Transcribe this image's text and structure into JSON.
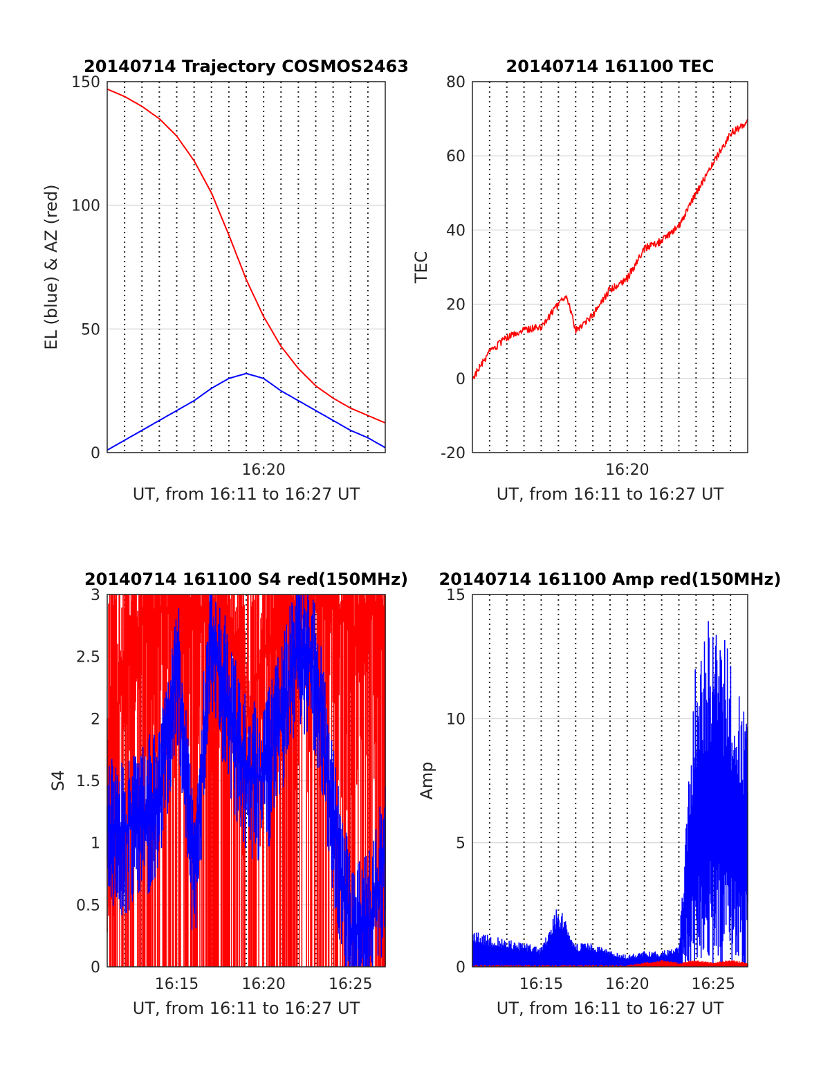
{
  "chart_data": [
    {
      "type": "line",
      "title": "20140714 Trajectory COSMOS2463",
      "xlabel": "UT, from 16:11 to 16:27 UT",
      "ylabel": "EL (blue) & AZ (red)",
      "xlim": [
        "16:11",
        "16:27"
      ],
      "ylim": [
        0,
        150
      ],
      "xticks": [
        "16:20"
      ],
      "yticks": [
        0,
        50,
        100,
        150
      ],
      "grid": true,
      "series": [
        {
          "color": "#ff0000",
          "x": [
            "16:11",
            "16:12",
            "16:13",
            "16:14",
            "16:15",
            "16:16",
            "16:17",
            "16:18",
            "16:19",
            "16:20",
            "16:21",
            "16:22",
            "16:23",
            "16:24",
            "16:25",
            "16:26",
            "16:27"
          ],
          "values": [
            147,
            144,
            140,
            135,
            128,
            118,
            105,
            88,
            70,
            55,
            43,
            34,
            27,
            22,
            18,
            15,
            12
          ]
        },
        {
          "color": "#0000ff",
          "x": [
            "16:11",
            "16:12",
            "16:13",
            "16:14",
            "16:15",
            "16:16",
            "16:17",
            "16:18",
            "16:19",
            "16:20",
            "16:21",
            "16:22",
            "16:23",
            "16:24",
            "16:25",
            "16:26",
            "16:27"
          ],
          "values": [
            1,
            5,
            9,
            13,
            17,
            21,
            26,
            30,
            32,
            30,
            25,
            21,
            17,
            13,
            9,
            6,
            2
          ]
        }
      ]
    },
    {
      "type": "line",
      "title": "20140714 161100 TEC",
      "xlabel": "UT, from 16:11 to 16:27 UT",
      "ylabel": "TEC",
      "xlim": [
        "16:11",
        "16:27"
      ],
      "ylim": [
        -20,
        80
      ],
      "xticks": [
        "16:20"
      ],
      "yticks": [
        -20,
        0,
        20,
        40,
        60,
        80
      ],
      "grid": true,
      "series": [
        {
          "color": "#ff0000",
          "x": [
            "16:11",
            "16:12",
            "16:13",
            "16:14",
            "16:15",
            "16:16",
            "16:16:30",
            "16:17",
            "16:18",
            "16:19",
            "16:20",
            "16:21",
            "16:22",
            "16:23",
            "16:24",
            "16:25",
            "16:26",
            "16:27"
          ],
          "values": [
            0,
            7,
            11,
            13,
            14,
            20,
            22,
            13,
            17,
            24,
            27,
            35,
            37,
            41,
            50,
            58,
            66,
            69
          ]
        }
      ]
    },
    {
      "type": "line",
      "title": "20140714 161100 S4 red(150MHz)",
      "xlabel": "UT, from 16:11 to 16:27 UT",
      "ylabel": "S4",
      "xlim": [
        "16:11",
        "16:27"
      ],
      "ylim": [
        0,
        3
      ],
      "xticks": [
        "16:15",
        "16:20",
        "16:25"
      ],
      "yticks": [
        0,
        0.5,
        1,
        1.5,
        2,
        2.5,
        3
      ],
      "grid": true,
      "series": [
        {
          "color": "#ff0000",
          "x": [
            "16:11",
            "16:12",
            "16:13",
            "16:14",
            "16:15",
            "16:16",
            "16:17",
            "16:18",
            "16:19",
            "16:20",
            "16:21",
            "16:22",
            "16:23",
            "16:24",
            "16:25",
            "16:26",
            "16:27"
          ],
          "values": [
            1.5,
            2.5,
            2.8,
            2.9,
            2.8,
            2.9,
            2.9,
            2.8,
            2.0,
            2.5,
            2.9,
            2.9,
            2.9,
            2.9,
            2.7,
            2.9,
            2.9
          ]
        },
        {
          "color": "#0000ff",
          "x": [
            "16:11",
            "16:12",
            "16:13",
            "16:14",
            "16:15",
            "16:16",
            "16:17",
            "16:18",
            "16:19",
            "16:20",
            "16:21",
            "16:22",
            "16:23",
            "16:24",
            "16:25",
            "16:26",
            "16:27"
          ],
          "values": [
            1.1,
            1.1,
            1.2,
            1.4,
            2.5,
            0.7,
            2.7,
            2.1,
            1.6,
            1.5,
            2.0,
            2.6,
            2.4,
            1.2,
            0.3,
            0.3,
            0.9
          ]
        }
      ]
    },
    {
      "type": "line",
      "title": "20140714 161100 Amp red(150MHz)",
      "xlabel": "UT, from 16:11 to 16:27 UT",
      "ylabel": "Amp",
      "xlim": [
        "16:11",
        "16:27"
      ],
      "ylim": [
        0,
        15
      ],
      "xticks": [
        "16:15",
        "16:20",
        "16:25"
      ],
      "yticks": [
        0,
        5,
        10,
        15
      ],
      "grid": true,
      "series": [
        {
          "color": "#0000ff",
          "x": [
            "16:11",
            "16:12",
            "16:13",
            "16:14",
            "16:15",
            "16:16",
            "16:17",
            "16:18",
            "16:19",
            "16:20",
            "16:21",
            "16:22",
            "16:23",
            "16:24",
            "16:25",
            "16:26",
            "16:27"
          ],
          "values": [
            0.9,
            0.8,
            0.7,
            0.6,
            0.5,
            1.6,
            0.6,
            0.6,
            0.4,
            0.3,
            0.4,
            0.4,
            0.5,
            8,
            9,
            8,
            6
          ]
        },
        {
          "color": "#ff0000",
          "x": [
            "16:11",
            "16:20",
            "16:21",
            "16:22",
            "16:23",
            "16:24",
            "16:25",
            "16:26",
            "16:27"
          ],
          "values": [
            0,
            0,
            0.1,
            0.2,
            0.1,
            0.2,
            0.1,
            0.2,
            0.1
          ]
        }
      ]
    }
  ]
}
